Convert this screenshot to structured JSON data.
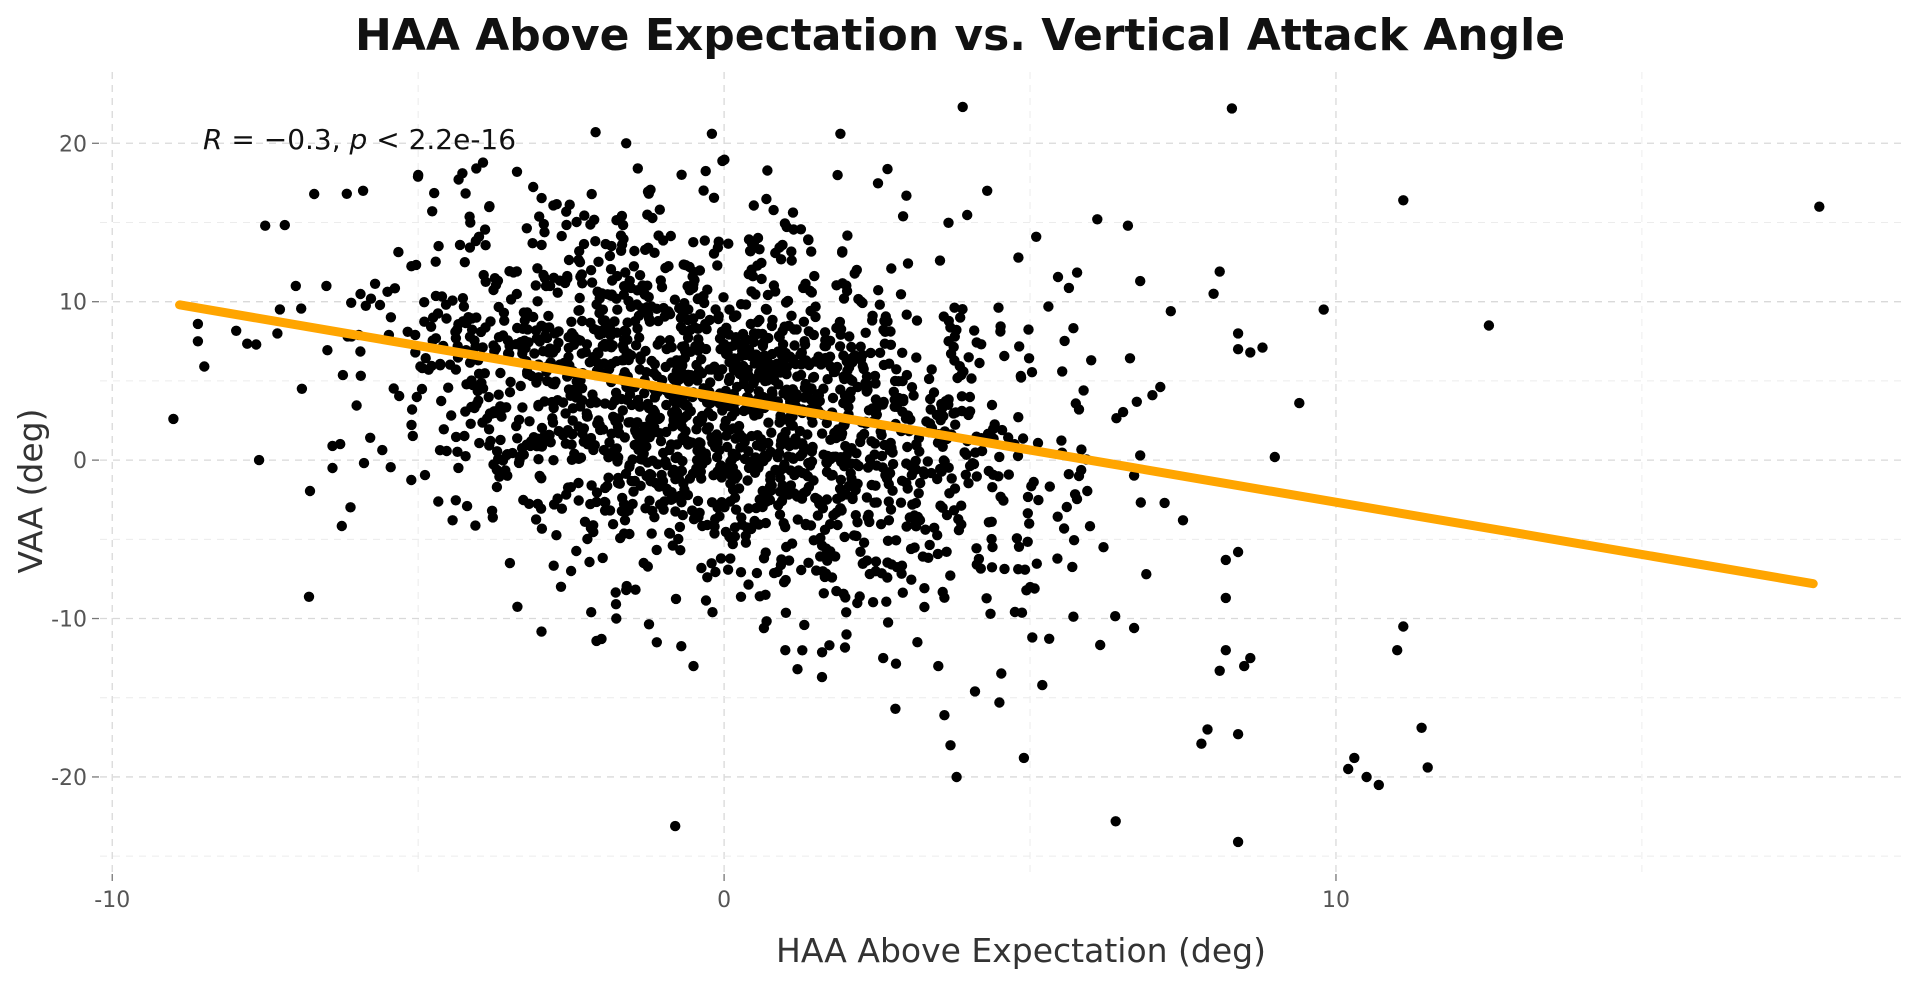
{
  "chart_data": {
    "type": "scatter",
    "title": "HAA Above Expectation vs. Vertical Attack Angle",
    "xlabel": "HAA Above Expectation (deg)",
    "ylabel": "VAA (deg)",
    "xlim": [
      -10.2,
      19.3
    ],
    "ylim": [
      -26.0,
      24.5
    ],
    "x_ticks": [
      -10,
      0,
      10
    ],
    "y_ticks": [
      -20,
      -10,
      0,
      10,
      20
    ],
    "grid": true,
    "annotation": {
      "r_symbol": "R",
      "r_text": " = −0.3, ",
      "p_symbol": "p",
      "p_text": " < 2.2e-16"
    },
    "colors": {
      "points": "#000000",
      "fit_line": "#FFA500"
    },
    "fit_line": {
      "x": [
        -8.9,
        17.8
      ],
      "y": [
        9.8,
        -7.8
      ]
    },
    "points": [
      [
        -9.0,
        2.6
      ],
      [
        -7.6,
        0.0
      ],
      [
        -6.4,
        0.9
      ],
      [
        -6.4,
        -0.5
      ],
      [
        -6.7,
        16.8
      ],
      [
        -5.9,
        17.0
      ],
      [
        -7.5,
        14.8
      ],
      [
        -5.0,
        18.0
      ],
      [
        -8.6,
        8.6
      ],
      [
        -8.6,
        7.5
      ],
      [
        -7.3,
        8.0
      ],
      [
        -7.0,
        11.0
      ],
      [
        -6.5,
        11.0
      ],
      [
        -6.9,
        4.5
      ],
      [
        -4.2,
        -2.9
      ],
      [
        -3.5,
        -6.5
      ],
      [
        -2.5,
        -7.0
      ],
      [
        -1.6,
        -8.2
      ],
      [
        -1.1,
        -11.5
      ],
      [
        -0.5,
        -13.0
      ],
      [
        -0.8,
        -23.1
      ],
      [
        1.0,
        -12.0
      ],
      [
        1.2,
        -13.2
      ],
      [
        1.6,
        -13.7
      ],
      [
        2.0,
        -11.0
      ],
      [
        2.6,
        -12.5
      ],
      [
        2.8,
        -15.7
      ],
      [
        3.5,
        -13.0
      ],
      [
        3.6,
        -16.1
      ],
      [
        3.7,
        -18.0
      ],
      [
        3.8,
        -20.0
      ],
      [
        4.1,
        -14.6
      ],
      [
        4.5,
        -15.3
      ],
      [
        4.9,
        -18.8
      ],
      [
        5.2,
        -14.2
      ],
      [
        6.4,
        -22.8
      ],
      [
        6.7,
        -10.6
      ],
      [
        7.8,
        -17.9
      ],
      [
        7.9,
        -17.0
      ],
      [
        8.1,
        -13.3
      ],
      [
        8.2,
        -12.0
      ],
      [
        8.2,
        -6.3
      ],
      [
        8.2,
        -8.7
      ],
      [
        8.4,
        -17.3
      ],
      [
        8.4,
        -24.1
      ],
      [
        8.5,
        -13.0
      ],
      [
        8.6,
        -12.5
      ],
      [
        8.4,
        -5.8
      ],
      [
        8.4,
        7.0
      ],
      [
        8.6,
        6.8
      ],
      [
        8.3,
        22.2
      ],
      [
        8.1,
        11.9
      ],
      [
        8.0,
        10.5
      ],
      [
        8.4,
        8.0
      ],
      [
        8.8,
        7.1
      ],
      [
        9.0,
        0.2
      ],
      [
        9.4,
        3.6
      ],
      [
        9.8,
        9.5
      ],
      [
        10.2,
        -19.5
      ],
      [
        10.3,
        -18.8
      ],
      [
        10.5,
        -20.0
      ],
      [
        10.7,
        -20.5
      ],
      [
        11.0,
        -12.0
      ],
      [
        11.1,
        -10.5
      ],
      [
        11.1,
        16.4
      ],
      [
        11.4,
        -16.9
      ],
      [
        11.5,
        -19.4
      ],
      [
        12.5,
        8.5
      ],
      [
        17.9,
        16.0
      ],
      [
        3.9,
        22.3
      ],
      [
        -1.6,
        20.0
      ],
      [
        1.9,
        20.6
      ],
      [
        -2.1,
        20.7
      ],
      [
        -0.2,
        20.6
      ],
      [
        4.3,
        17.0
      ],
      [
        6.1,
        15.2
      ],
      [
        6.6,
        14.8
      ],
      [
        6.8,
        11.3
      ],
      [
        7.3,
        9.4
      ],
      [
        7.0,
        4.1
      ],
      [
        6.8,
        0.3
      ],
      [
        7.2,
        -2.7
      ],
      [
        7.5,
        -3.8
      ],
      [
        6.9,
        -7.2
      ],
      [
        6.2,
        -5.5
      ],
      [
        5.8,
        -1.0
      ],
      [
        5.8,
        3.2
      ],
      [
        6.0,
        6.3
      ],
      [
        5.1,
        14.1
      ],
      [
        5.3,
        9.7
      ]
    ],
    "cluster": {
      "count": 1900,
      "center": [
        0.0,
        3.5
      ],
      "spread": [
        2.6,
        6.0
      ],
      "correlation": -0.3,
      "x_range": [
        -8.8,
        7.2
      ],
      "y_range": [
        -13.5,
        19.0
      ]
    }
  }
}
